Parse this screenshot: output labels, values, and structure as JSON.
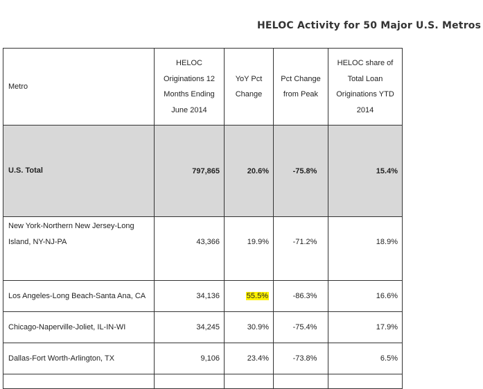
{
  "title": "HELOC Activity for 50 Major U.S. Metros",
  "highlight_color": "#fff200",
  "headers": {
    "metro": "Metro",
    "originations": [
      "HELOC",
      "Originations 12",
      "Months Ending",
      "June 2014"
    ],
    "yoy": [
      "YoY Pct",
      "Change"
    ],
    "peak": [
      "Pct Change",
      "from Peak"
    ],
    "share": [
      "HELOC share of",
      "Total Loan",
      "Originations YTD",
      "2014"
    ]
  },
  "rows": [
    {
      "metro": "U.S. Total",
      "originations": "797,865",
      "yoy": "20.6%",
      "peak": "-75.8%",
      "share": "15.4%"
    },
    {
      "metro_lines": [
        "New York-Northern New Jersey-Long",
        "Island, NY-NJ-PA"
      ],
      "originations": "43,366",
      "yoy": "19.9%",
      "peak": "-71.2%",
      "share": "18.9%"
    },
    {
      "metro": "Los Angeles-Long Beach-Santa Ana, CA",
      "originations": "34,136",
      "yoy": "55.5%",
      "peak": "-86.3%",
      "share": "16.6%"
    },
    {
      "metro": "Chicago-Naperville-Joliet, IL-IN-WI",
      "originations": "34,245",
      "yoy": "30.9%",
      "peak": "-75.4%",
      "share": "17.9%"
    },
    {
      "metro": "Dallas-Fort Worth-Arlington, TX",
      "originations": "9,106",
      "yoy": "23.4%",
      "peak": "-73.8%",
      "share": "6.5%"
    }
  ]
}
